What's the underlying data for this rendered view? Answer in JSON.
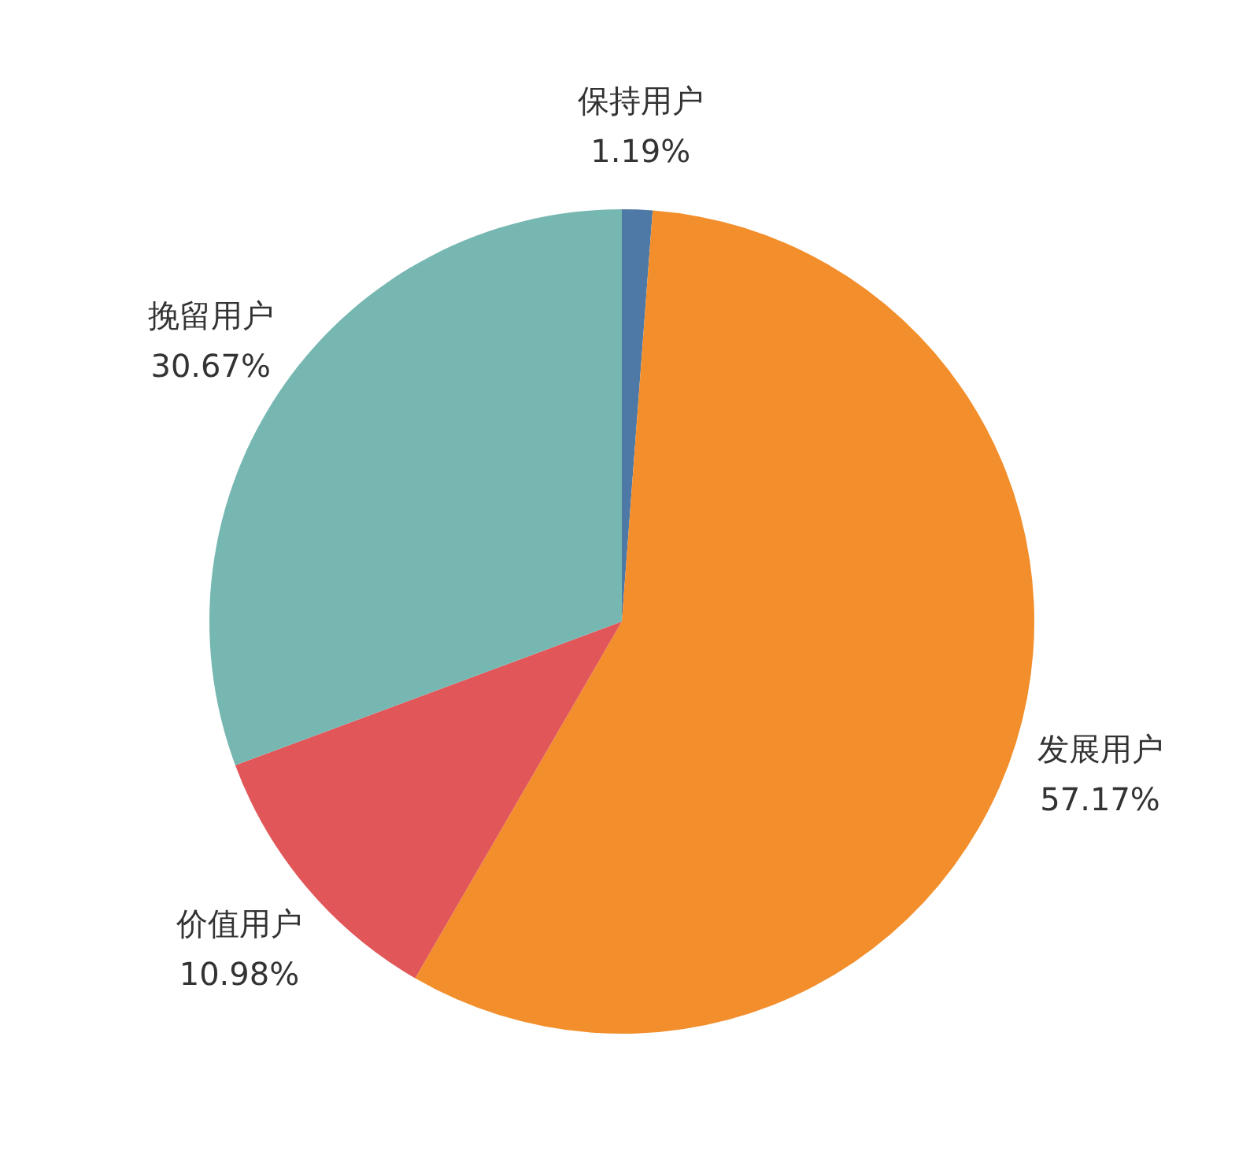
{
  "chart_data": {
    "type": "pie",
    "categories": [
      "保持用户",
      "发展用户",
      "价值用户",
      "挽留用户"
    ],
    "values": [
      1.19,
      57.17,
      10.98,
      30.67
    ],
    "colors": [
      "#4e79a7",
      "#f28e2b",
      "#e15759",
      "#76b7b2"
    ],
    "value_labels": [
      "1.19%",
      "57.17%",
      "10.98%",
      "30.67%"
    ]
  }
}
